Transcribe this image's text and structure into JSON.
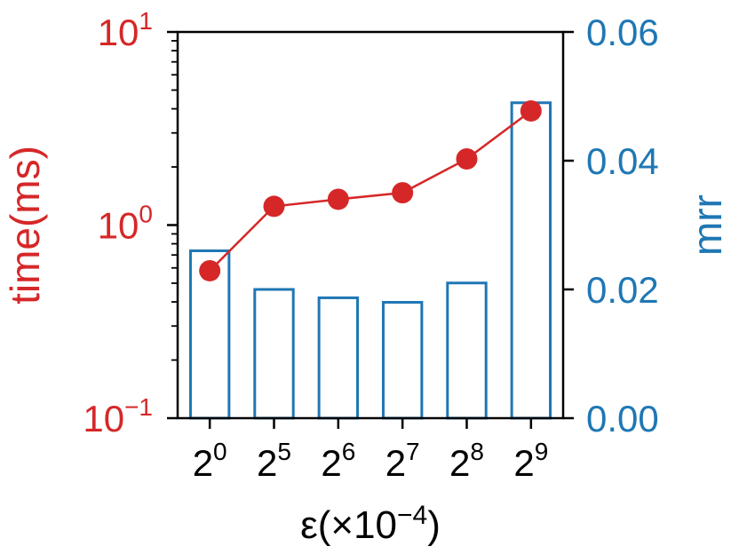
{
  "chart_data": {
    "type": "bar",
    "categories": [
      {
        "base": "2",
        "exp": "0"
      },
      {
        "base": "2",
        "exp": "5"
      },
      {
        "base": "2",
        "exp": "6"
      },
      {
        "base": "2",
        "exp": "7"
      },
      {
        "base": "2",
        "exp": "8"
      },
      {
        "base": "2",
        "exp": "9"
      }
    ],
    "xlabel": {
      "pre": "ε(×10",
      "exp": "−4",
      "post": ")"
    },
    "series": [
      {
        "type": "line",
        "axis": "left",
        "color": "#d62728",
        "values": [
          0.58,
          1.25,
          1.36,
          1.47,
          2.2,
          3.9
        ]
      },
      {
        "type": "bar",
        "axis": "right",
        "color": "#1f77b4",
        "fill": "none",
        "values": [
          0.026,
          0.02,
          0.0187,
          0.018,
          0.021,
          0.049
        ]
      }
    ],
    "left_axis": {
      "label": "time(ms)",
      "scale": "log",
      "lim": [
        0.1,
        10
      ],
      "color": "#d62728",
      "ticks": [
        {
          "value": 0.1,
          "base": "10",
          "exp": "−1"
        },
        {
          "value": 1,
          "base": "10",
          "exp": "0"
        },
        {
          "value": 10,
          "base": "10",
          "exp": "1"
        }
      ]
    },
    "right_axis": {
      "label": "mrr",
      "scale": "linear",
      "lim": [
        0,
        0.06
      ],
      "color": "#1f77b4",
      "ticks": [
        "0.00",
        "0.02",
        "0.04",
        "0.06"
      ]
    },
    "grid": false,
    "legend": "none"
  }
}
